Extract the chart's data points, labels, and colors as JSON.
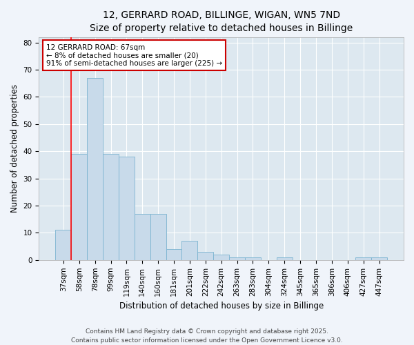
{
  "title": "12, GERRARD ROAD, BILLINGE, WIGAN, WN5 7ND",
  "subtitle": "Size of property relative to detached houses in Billinge",
  "xlabel": "Distribution of detached houses by size in Billinge",
  "ylabel": "Number of detached properties",
  "categories": [
    "37sqm",
    "58sqm",
    "78sqm",
    "99sqm",
    "119sqm",
    "140sqm",
    "160sqm",
    "181sqm",
    "201sqm",
    "222sqm",
    "242sqm",
    "263sqm",
    "283sqm",
    "304sqm",
    "324sqm",
    "345sqm",
    "365sqm",
    "386sqm",
    "406sqm",
    "427sqm",
    "447sqm"
  ],
  "values": [
    11,
    39,
    67,
    39,
    38,
    17,
    17,
    4,
    7,
    3,
    2,
    1,
    1,
    0,
    1,
    0,
    0,
    0,
    0,
    1,
    1
  ],
  "bar_color": "#c8daea",
  "bar_edge_color": "#7ab3d0",
  "figure_bg": "#f0f4fa",
  "axes_bg": "#dde8f0",
  "grid_color": "#ffffff",
  "red_line_x": 1,
  "annotation_text": "12 GERRARD ROAD: 67sqm\n← 8% of detached houses are smaller (20)\n91% of semi-detached houses are larger (225) →",
  "annotation_box_facecolor": "#ffffff",
  "annotation_box_edgecolor": "#cc0000",
  "ylim": [
    0,
    82
  ],
  "yticks": [
    0,
    10,
    20,
    30,
    40,
    50,
    60,
    70,
    80
  ],
  "footer": "Contains HM Land Registry data © Crown copyright and database right 2025.\nContains public sector information licensed under the Open Government Licence v3.0.",
  "title_fontsize": 10,
  "subtitle_fontsize": 9,
  "axis_label_fontsize": 8.5,
  "tick_fontsize": 7.5,
  "annotation_fontsize": 7.5,
  "footer_fontsize": 6.5
}
